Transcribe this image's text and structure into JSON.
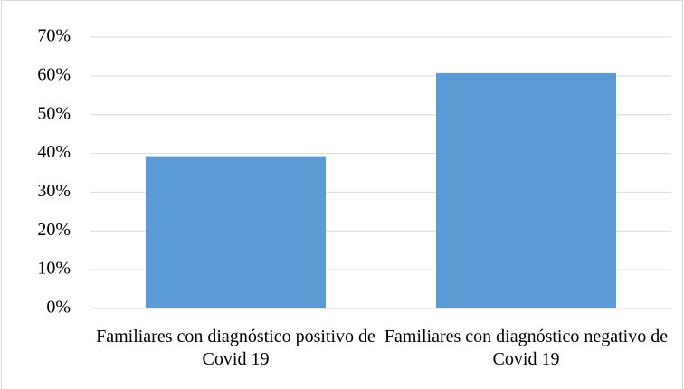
{
  "chart_data": {
    "type": "bar",
    "categories": [
      "Familiares con diagnóstico positivo de Covid 19",
      "Familiares con diagnóstico negativo de Covid 19"
    ],
    "values": [
      39.3,
      60.7
    ],
    "color": "#5b9bd5",
    "ylim": [
      0,
      70
    ],
    "yticks": [
      {
        "value": 0,
        "label": "0%"
      },
      {
        "value": 10,
        "label": "10%"
      },
      {
        "value": 20,
        "label": "20%"
      },
      {
        "value": 30,
        "label": "30%"
      },
      {
        "value": 40,
        "label": "40%"
      },
      {
        "value": 50,
        "label": "50%"
      },
      {
        "value": 60,
        "label": "60%"
      },
      {
        "value": 70,
        "label": "70%"
      }
    ],
    "grid": true
  }
}
